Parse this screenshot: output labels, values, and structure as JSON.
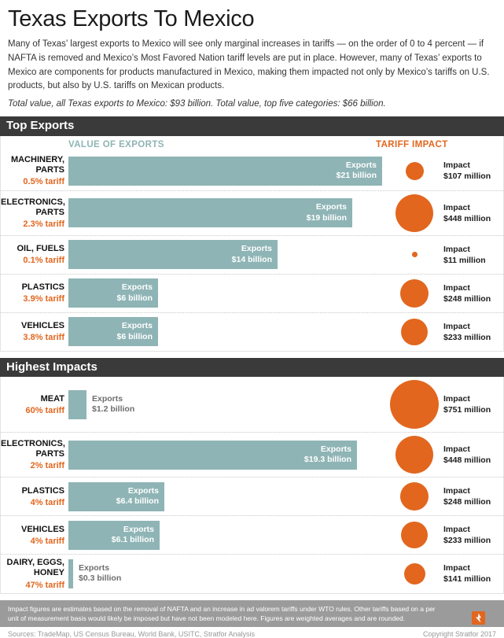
{
  "page": {
    "title": "Texas Exports To Mexico",
    "intro": "Many of Texas’ largest exports to Mexico will see only marginal increases in tariffs — on the order of 0 to 4 percent — if NAFTA is removed and Mexico’s Most Favored Nation tariff levels are put in place. However, many of Texas’ exports to Mexico are components for products manufactured in Mexico, making them impacted not only by Mexico’s tariffs on U.S. products, but also by U.S. tariffs on Mexican products.",
    "totals_note": "Total value, all Texas exports to Mexico: $93 billion. Total value, top five categories: $66 billion."
  },
  "column_headers": {
    "exports": "VALUE OF EXPORTS",
    "impact": "TARIFF IMPACT"
  },
  "chart_data": {
    "type": "bar",
    "impact_encoding": "bubble-area",
    "exports_unit": "USD billion",
    "impact_unit": "USD million",
    "colors": {
      "bar": "#8fb4b5",
      "impact": "#e2661e",
      "header_bar": "#3a3a3a"
    },
    "sections": [
      {
        "title": "Top Exports",
        "rows": [
          {
            "name": "MACHINERY, PARTS",
            "tariff": "0.5% tariff",
            "exports_word": "Exports",
            "exports_text": "$21 billion",
            "exports_billion": 21,
            "impact_word": "Impact",
            "impact_text": "$107 million",
            "impact_million": 107
          },
          {
            "name": "ELECTRONICS, PARTS",
            "tariff": "2.3% tariff",
            "exports_word": "Exports",
            "exports_text": "$19 billion",
            "exports_billion": 19,
            "impact_word": "Impact",
            "impact_text": "$448 million",
            "impact_million": 448
          },
          {
            "name": "OIL, FUELS",
            "tariff": "0.1% tariff",
            "exports_word": "Exports",
            "exports_text": "$14 billion",
            "exports_billion": 14,
            "impact_word": "Impact",
            "impact_text": "$11 million",
            "impact_million": 11
          },
          {
            "name": "PLASTICS",
            "tariff": "3.9% tariff",
            "exports_word": "Exports",
            "exports_text": "$6 billion",
            "exports_billion": 6,
            "impact_word": "Impact",
            "impact_text": "$248 million",
            "impact_million": 248
          },
          {
            "name": "VEHICLES",
            "tariff": "3.8% tariff",
            "exports_word": "Exports",
            "exports_text": "$6 billion",
            "exports_billion": 6,
            "impact_word": "Impact",
            "impact_text": "$233 million",
            "impact_million": 233
          }
        ]
      },
      {
        "title": "Highest Impacts",
        "rows": [
          {
            "name": "MEAT",
            "tariff": "60% tariff",
            "exports_word": "Exports",
            "exports_text": "$1.2 billion",
            "exports_billion": 1.2,
            "impact_word": "Impact",
            "impact_text": "$751 million",
            "impact_million": 751
          },
          {
            "name": "ELECTRONICS, PARTS",
            "tariff": "2% tariff",
            "exports_word": "Exports",
            "exports_text": "$19.3 billion",
            "exports_billion": 19.3,
            "impact_word": "Impact",
            "impact_text": "$448 million",
            "impact_million": 448
          },
          {
            "name": "PLASTICS",
            "tariff": "4% tariff",
            "exports_word": "Exports",
            "exports_text": "$6.4 billion",
            "exports_billion": 6.4,
            "impact_word": "Impact",
            "impact_text": "$248 million",
            "impact_million": 248
          },
          {
            "name": "VEHICLES",
            "tariff": "4% tariff",
            "exports_word": "Exports",
            "exports_text": "$6.1 billion",
            "exports_billion": 6.1,
            "impact_word": "Impact",
            "impact_text": "$233 million",
            "impact_million": 233
          },
          {
            "name": "DAIRY, EGGS, HONEY",
            "tariff": "47% tariff",
            "exports_word": "Exports",
            "exports_text": "$0.3 billion",
            "exports_billion": 0.3,
            "impact_word": "Impact",
            "impact_text": "$141 million",
            "impact_million": 141
          }
        ]
      }
    ]
  },
  "footer": {
    "note": "Impact figures are estimates based on the removal of NAFTA and an increase in ad valorem tariffs under WTO rules. Other tariffs based on a per unit of measurement basis would likely be imposed but have not been modeled here. Figures are weighted averages and are rounded.",
    "sources": "Sources: TradeMap, US Census Bureau, World Bank, USITC, Stratfor Analysis",
    "copyright": "Copyright Stratfor 2017",
    "logo": "stratfor-logo"
  }
}
